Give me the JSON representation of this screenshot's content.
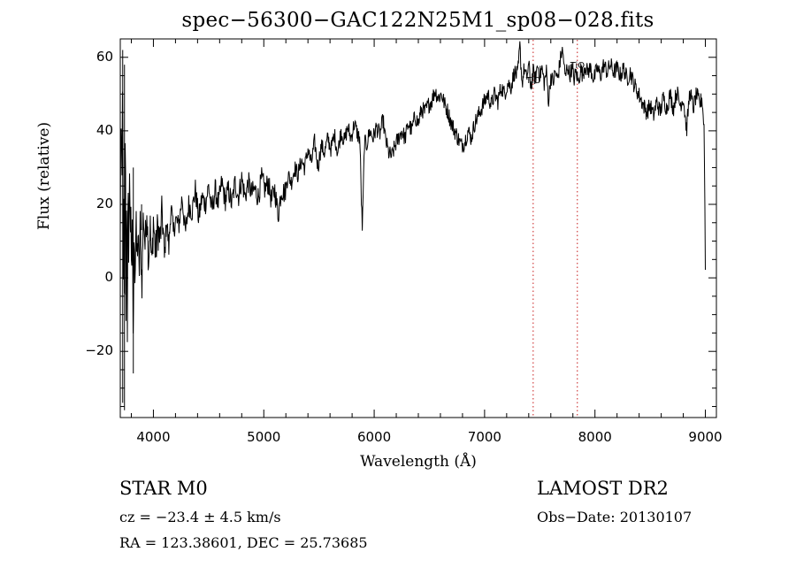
{
  "figure": {
    "title": "spec−56300−GAC122N25M1_sp08−028.fits",
    "xlabel": "Wavelength (Å)",
    "ylabel": "Flux (relative)",
    "class_label": "STAR    M0",
    "survey_label": "LAMOST DR2",
    "velocity_label": "cz = −23.4 ± 4.5 km/s",
    "obs_date_label": "Obs−Date: 20130107",
    "coords_label": "RA = 123.38601, DEC =  25.73685"
  },
  "chart_data": {
    "type": "line",
    "title": "spec−56300−GAC122N25M1_sp08−028.fits",
    "xlabel": "Wavelength (Å)",
    "ylabel": "Flux (relative)",
    "xlim": [
      3700,
      9100
    ],
    "ylim": [
      -38,
      65
    ],
    "x_ticks": [
      4000,
      5000,
      6000,
      7000,
      8000,
      9000
    ],
    "y_ticks": [
      -20,
      0,
      20,
      40,
      60
    ],
    "grid": false,
    "series": [
      {
        "color": "#000000",
        "x": [
          3700,
          3720,
          3740,
          3760,
          3780,
          3800,
          3830,
          3860,
          3900,
          3950,
          4000,
          4050,
          4100,
          4150,
          4200,
          4300,
          4400,
          4500,
          4600,
          4700,
          4800,
          4900,
          5000,
          5100,
          5200,
          5300,
          5400,
          5500,
          5600,
          5700,
          5800,
          5850,
          5880,
          5900,
          5920,
          5950,
          6000,
          6100,
          6200,
          6300,
          6400,
          6500,
          6550,
          6600,
          6700,
          6800,
          6900,
          7000,
          7100,
          7200,
          7300,
          7350,
          7400,
          7450,
          7500,
          7550,
          7600,
          7650,
          7700,
          7750,
          7800,
          7850,
          7900,
          8000,
          8100,
          8200,
          8300,
          8400,
          8500,
          8600,
          8700,
          8800,
          8900,
          8950,
          9000
        ],
        "y": [
          5,
          55,
          -35,
          30,
          -10,
          25,
          5,
          10,
          5,
          15,
          10,
          13,
          12,
          14,
          17,
          20,
          21,
          22,
          24,
          24,
          26,
          25,
          25,
          22,
          26,
          30,
          34,
          36,
          36,
          38,
          40,
          41,
          37,
          14,
          36,
          38,
          40,
          40,
          33,
          38,
          43,
          48,
          50,
          48,
          40,
          37,
          42,
          48,
          49,
          52,
          55,
          54,
          53,
          56,
          55,
          55,
          54,
          55,
          57,
          55,
          54,
          55,
          54,
          55,
          56,
          57,
          56,
          52,
          48,
          45,
          50,
          49,
          50,
          48,
          3
        ],
        "markers": [
          [
            3700,
            10
          ],
          [
            3705,
            45
          ],
          [
            3710,
            35
          ],
          [
            3715,
            20
          ],
          [
            3722,
            60
          ],
          [
            3728,
            -5
          ],
          [
            3733,
            25
          ],
          [
            3738,
            -30
          ],
          [
            3745,
            50
          ],
          [
            3752,
            -8
          ],
          [
            3758,
            30
          ],
          [
            3764,
            -14
          ],
          [
            3770,
            28
          ],
          [
            3776,
            0
          ],
          [
            3782,
            35
          ],
          [
            3790,
            10
          ],
          [
            3796,
            22
          ],
          [
            3803,
            -5
          ],
          [
            3810,
            18
          ],
          [
            3818,
            -25
          ],
          [
            3825,
            20
          ],
          [
            3833,
            -2
          ],
          [
            3842,
            15
          ],
          [
            3850,
            5
          ],
          [
            3860,
            12
          ],
          [
            3870,
            0
          ],
          [
            3880,
            14
          ],
          [
            3895,
            -2
          ],
          [
            3910,
            18
          ],
          [
            3925,
            8
          ],
          [
            3940,
            20
          ],
          [
            3955,
            5
          ],
          [
            3970,
            15
          ],
          [
            3985,
            2
          ],
          [
            4000,
            16
          ],
          [
            4020,
            6
          ],
          [
            4040,
            14
          ],
          [
            4060,
            10
          ],
          [
            4080,
            18
          ],
          [
            4100,
            5
          ],
          [
            4120,
            16
          ],
          [
            4140,
            8
          ],
          [
            4160,
            20
          ],
          [
            4180,
            12
          ],
          [
            4200,
            16
          ],
          [
            4230,
            14
          ],
          [
            4260,
            22
          ],
          [
            4290,
            12
          ],
          [
            4320,
            20
          ],
          [
            4350,
            18
          ],
          [
            4380,
            24
          ],
          [
            4410,
            16
          ],
          [
            4440,
            22
          ],
          [
            4470,
            20
          ],
          [
            4500,
            25
          ],
          [
            4530,
            18
          ],
          [
            4560,
            24
          ],
          [
            4590,
            20
          ],
          [
            4620,
            26
          ],
          [
            4650,
            21
          ],
          [
            4680,
            24
          ],
          [
            4710,
            20
          ],
          [
            4740,
            26
          ],
          [
            4770,
            22
          ],
          [
            4800,
            27
          ],
          [
            4830,
            22
          ],
          [
            4860,
            26
          ],
          [
            4890,
            23
          ],
          [
            4920,
            24
          ],
          [
            4950,
            22
          ],
          [
            4980,
            27
          ],
          [
            5010,
            24
          ],
          [
            5040,
            26
          ],
          [
            5070,
            21
          ],
          [
            5100,
            24
          ],
          [
            5130,
            17
          ],
          [
            5160,
            24
          ],
          [
            5190,
            23
          ],
          [
            5220,
            28
          ],
          [
            5250,
            26
          ],
          [
            5280,
            30
          ],
          [
            5310,
            28
          ],
          [
            5340,
            32
          ],
          [
            5370,
            30
          ],
          [
            5400,
            35
          ],
          [
            5430,
            31
          ],
          [
            5460,
            37
          ],
          [
            5490,
            30
          ],
          [
            5520,
            36
          ],
          [
            5550,
            34
          ],
          [
            5580,
            38
          ],
          [
            5610,
            35
          ],
          [
            5640,
            39
          ],
          [
            5670,
            34
          ],
          [
            5700,
            40
          ],
          [
            5730,
            37
          ],
          [
            5760,
            41
          ],
          [
            5790,
            38
          ],
          [
            5820,
            42
          ],
          [
            5850,
            39
          ],
          [
            5870,
            38
          ],
          [
            5885,
            20
          ],
          [
            5893,
            13
          ],
          [
            5900,
            22
          ],
          [
            5912,
            37
          ],
          [
            5930,
            36
          ],
          [
            5960,
            40
          ],
          [
            5990,
            38
          ],
          [
            6020,
            41
          ],
          [
            6050,
            39
          ],
          [
            6080,
            43
          ],
          [
            6100,
            38
          ],
          [
            6130,
            34
          ],
          [
            6160,
            33
          ],
          [
            6190,
            36
          ],
          [
            6220,
            38
          ],
          [
            6250,
            40
          ],
          [
            6280,
            38
          ],
          [
            6310,
            42
          ],
          [
            6340,
            40
          ],
          [
            6370,
            44
          ],
          [
            6400,
            42
          ],
          [
            6430,
            46
          ],
          [
            6460,
            45
          ],
          [
            6490,
            47
          ],
          [
            6520,
            48
          ],
          [
            6550,
            51
          ],
          [
            6580,
            49
          ],
          [
            6610,
            50
          ],
          [
            6640,
            47
          ],
          [
            6670,
            45
          ],
          [
            6700,
            42
          ],
          [
            6730,
            40
          ],
          [
            6760,
            38
          ],
          [
            6790,
            36
          ],
          [
            6820,
            37
          ],
          [
            6850,
            40
          ],
          [
            6880,
            38
          ],
          [
            6910,
            42
          ],
          [
            6940,
            44
          ],
          [
            6970,
            46
          ],
          [
            7000,
            48
          ],
          [
            7030,
            50
          ],
          [
            7060,
            47
          ],
          [
            7090,
            50
          ],
          [
            7120,
            48
          ],
          [
            7150,
            52
          ],
          [
            7180,
            50
          ],
          [
            7210,
            53
          ],
          [
            7240,
            52
          ],
          [
            7270,
            56
          ],
          [
            7300,
            55
          ],
          [
            7320,
            63
          ],
          [
            7340,
            53
          ],
          [
            7360,
            57
          ],
          [
            7380,
            54
          ],
          [
            7400,
            58
          ],
          [
            7420,
            52
          ],
          [
            7440,
            56
          ],
          [
            7460,
            54
          ],
          [
            7480,
            58
          ],
          [
            7500,
            55
          ],
          [
            7520,
            57
          ],
          [
            7540,
            53
          ],
          [
            7560,
            56
          ],
          [
            7580,
            48
          ],
          [
            7600,
            55
          ],
          [
            7620,
            53
          ],
          [
            7640,
            56
          ],
          [
            7660,
            54
          ],
          [
            7680,
            58
          ],
          [
            7700,
            62
          ],
          [
            7715,
            60
          ],
          [
            7730,
            54
          ],
          [
            7750,
            58
          ],
          [
            7770,
            55
          ],
          [
            7790,
            57
          ],
          [
            7810,
            54
          ],
          [
            7830,
            56
          ],
          [
            7850,
            53
          ],
          [
            7870,
            57
          ],
          [
            7890,
            55
          ],
          [
            7910,
            58
          ],
          [
            7930,
            56
          ],
          [
            7960,
            57
          ],
          [
            7990,
            54
          ],
          [
            8020,
            57
          ],
          [
            8050,
            55
          ],
          [
            8080,
            58
          ],
          [
            8110,
            56
          ],
          [
            8140,
            58
          ],
          [
            8170,
            56
          ],
          [
            8200,
            57
          ],
          [
            8230,
            55
          ],
          [
            8260,
            57
          ],
          [
            8290,
            54
          ],
          [
            8320,
            56
          ],
          [
            8350,
            53
          ],
          [
            8380,
            51
          ],
          [
            8410,
            49
          ],
          [
            8440,
            47
          ],
          [
            8470,
            45
          ],
          [
            8500,
            47
          ],
          [
            8530,
            44
          ],
          [
            8560,
            48
          ],
          [
            8590,
            45
          ],
          [
            8620,
            49
          ],
          [
            8650,
            46
          ],
          [
            8680,
            50
          ],
          [
            8710,
            46
          ],
          [
            8740,
            51
          ],
          [
            8770,
            47
          ],
          [
            8800,
            49
          ],
          [
            8830,
            40
          ],
          [
            8860,
            51
          ],
          [
            8890,
            46
          ],
          [
            8920,
            50
          ],
          [
            8950,
            47
          ],
          [
            8970,
            49
          ],
          [
            8990,
            40
          ],
          [
            9000,
            3
          ]
        ]
      }
    ],
    "reference_lines": [
      {
        "x": 7440,
        "color": "#d04040"
      },
      {
        "x": 7840,
        "color": "#d04040"
      }
    ],
    "annotations": [
      {
        "text": "TiO",
        "x": 7440,
        "y": 53
      },
      {
        "text": "TiO",
        "x": 7840,
        "y": 57
      }
    ]
  }
}
